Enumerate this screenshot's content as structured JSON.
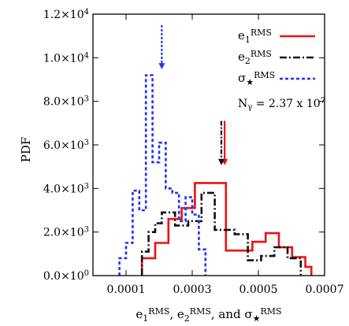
{
  "chart_data": {
    "type": "line",
    "ylabel": "PDF",
    "xlabel_parts": [
      {
        "t": "e",
        "s": "base"
      },
      {
        "t": "1",
        "s": "sub"
      },
      {
        "t": "RMS",
        "s": "sup"
      },
      {
        "t": ", e",
        "s": "base"
      },
      {
        "t": "2",
        "s": "sub"
      },
      {
        "t": "RMS",
        "s": "sup"
      },
      {
        "t": ", and σ",
        "s": "base"
      },
      {
        "t": "★",
        "s": "sub"
      },
      {
        "t": "RMS",
        "s": "sup"
      }
    ],
    "xlim": [
      0,
      0.0007
    ],
    "ylim": [
      0,
      12000
    ],
    "x_ticks": [
      {
        "value": 0.0001,
        "label": "0.0001"
      },
      {
        "value": 0.0003,
        "label": "0.0003"
      },
      {
        "value": 0.0005,
        "label": "0.0005"
      },
      {
        "value": 0.0007,
        "label": "0.0007"
      }
    ],
    "y_ticks": [
      {
        "value": 0,
        "mantissa": "0.0",
        "exp": "0"
      },
      {
        "value": 2000,
        "mantissa": "2.0",
        "exp": "3"
      },
      {
        "value": 4000,
        "mantissa": "4.0",
        "exp": "3"
      },
      {
        "value": 6000,
        "mantissa": "6.0",
        "exp": "3"
      },
      {
        "value": 8000,
        "mantissa": "8.0",
        "exp": "3"
      },
      {
        "value": 10000,
        "mantissa": "1.0",
        "exp": "4"
      },
      {
        "value": 12000,
        "mantissa": "1.2",
        "exp": "4"
      }
    ],
    "annotation": {
      "text": "N",
      "sub": "γ",
      "tail": " = 2.37 x 10",
      "exp": "7"
    },
    "series": [
      {
        "id": "e1",
        "legend": {
          "base": "e",
          "sub": "1",
          "sup": "RMS"
        },
        "color": "#ee1111",
        "dash": "none",
        "x": [
          0.000148,
          0.000148,
          0.000188,
          0.000188,
          0.000228,
          0.000228,
          0.000268,
          0.000268,
          0.000308,
          0.000308,
          0.000402,
          0.000402,
          0.000482,
          0.000482,
          0.000522,
          0.000522,
          0.000562,
          0.000562,
          0.000602,
          0.000602,
          0.000642,
          0.000642,
          0.00066,
          0.00066
        ],
        "y": [
          0,
          800,
          800,
          1500,
          1500,
          2600,
          2600,
          3100,
          3100,
          4250,
          4250,
          1150,
          1150,
          1550,
          1550,
          1950,
          1950,
          1300,
          1300,
          850,
          850,
          400,
          400,
          0
        ],
        "arrow_x": 0.000398
      },
      {
        "id": "e2",
        "legend": {
          "base": "e",
          "sub": "2",
          "sup": "RMS"
        },
        "color": "#111111",
        "dash": "9,3,2,3",
        "x": [
          0.000148,
          0.000148,
          0.000168,
          0.000168,
          0.000188,
          0.000188,
          0.000208,
          0.000208,
          0.000248,
          0.000248,
          0.000288,
          0.000288,
          0.000328,
          0.000328,
          0.000368,
          0.000368,
          0.000428,
          0.000428,
          0.000468,
          0.000468,
          0.000508,
          0.000508,
          0.000548,
          0.000548,
          0.000588,
          0.000588,
          0.000628,
          0.000628
        ],
        "y": [
          0,
          1100,
          1100,
          2000,
          2000,
          2400,
          2400,
          2900,
          2900,
          2300,
          2300,
          2500,
          2500,
          3800,
          3800,
          2100,
          2100,
          1900,
          1900,
          700,
          700,
          900,
          900,
          1300,
          1300,
          800,
          800,
          0
        ],
        "arrow_x": 0.000388
      },
      {
        "id": "sigma",
        "legend": {
          "base": "σ",
          "sub": "★",
          "sup": "RMS"
        },
        "color": "#2233ee",
        "dash": "4,3",
        "x": [
          8e-05,
          8e-05,
          0.0001,
          0.0001,
          0.00012,
          0.00012,
          0.00014,
          0.00014,
          0.00016,
          0.00016,
          0.00018,
          0.00018,
          0.0002,
          0.0002,
          0.00022,
          0.00022,
          0.00024,
          0.00024,
          0.00026,
          0.00026,
          0.00028,
          0.00028,
          0.0003,
          0.0003,
          0.00032,
          0.00032,
          0.00034,
          0.00034
        ],
        "y": [
          0,
          800,
          800,
          1500,
          1500,
          3900,
          3900,
          3000,
          3000,
          9200,
          9200,
          5200,
          5200,
          6100,
          6100,
          4000,
          4000,
          3800,
          3800,
          2500,
          2500,
          3600,
          3600,
          2800,
          2800,
          1200,
          1200,
          0
        ],
        "arrow_x": 0.000208
      }
    ]
  }
}
